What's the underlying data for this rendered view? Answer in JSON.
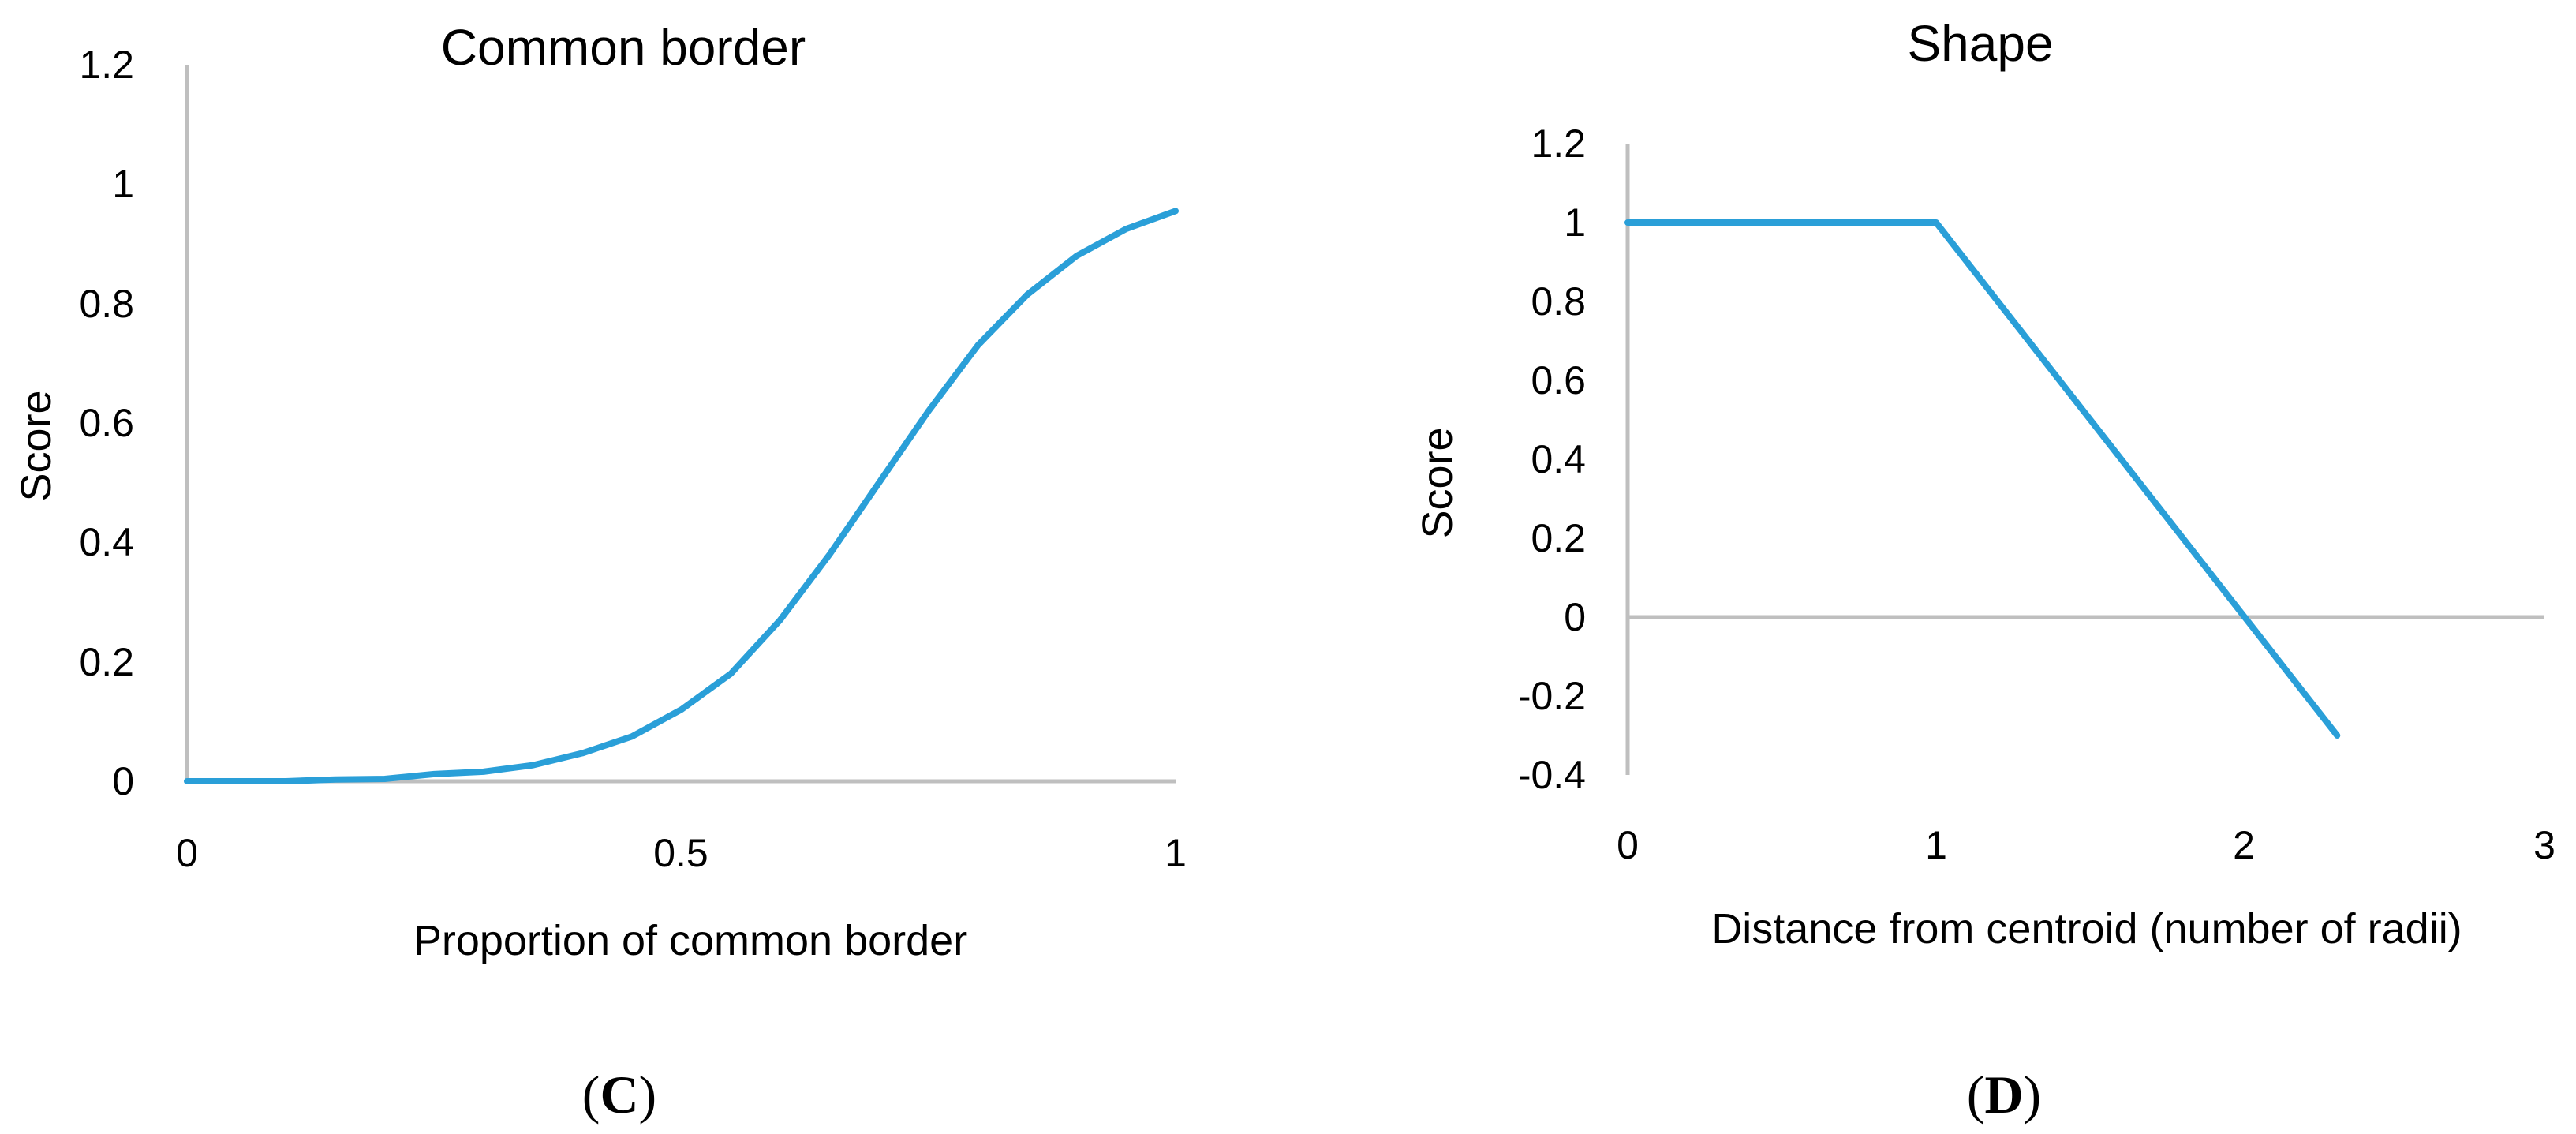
{
  "chart_data": [
    {
      "type": "line",
      "title": "Common border",
      "xlabel": "Proportion of common border",
      "ylabel": "Score",
      "xlim": [
        0,
        1
      ],
      "ylim": [
        0,
        1.2
      ],
      "x_ticks": [
        "0",
        "0.5",
        "1"
      ],
      "y_ticks": [
        "0",
        "0.2",
        "0.4",
        "0.6",
        "0.8",
        "1",
        "1.2"
      ],
      "grid": false,
      "series": [
        {
          "color": "#2a9fd8",
          "x": [
            0,
            0.05,
            0.1,
            0.15,
            0.2,
            0.25,
            0.3,
            0.35,
            0.4,
            0.45,
            0.5,
            0.55,
            0.6,
            0.65,
            0.7,
            0.75,
            0.8,
            0.85,
            0.9,
            0.95,
            1.0
          ],
          "y": [
            0,
            0,
            0,
            0.003,
            0.004,
            0.012,
            0.016,
            0.027,
            0.047,
            0.075,
            0.12,
            0.18,
            0.27,
            0.38,
            0.5,
            0.62,
            0.73,
            0.815,
            0.88,
            0.925,
            0.955
          ]
        }
      ],
      "panel_label": {
        "open": "(",
        "letter": "C",
        "close": ")"
      }
    },
    {
      "type": "line",
      "title": "Shape",
      "xlabel": "Distance from centroid (number of radii)",
      "ylabel": "Score",
      "xlim": [
        0,
        3
      ],
      "ylim": [
        -0.4,
        1.2
      ],
      "x_ticks": [
        "0",
        "1",
        "2",
        "3"
      ],
      "y_ticks": [
        "-0.4",
        "-0.2",
        "0",
        "0.2",
        "0.4",
        "0.6",
        "0.8",
        "1",
        "1.2"
      ],
      "grid": false,
      "series": [
        {
          "color": "#2a9fd8",
          "x": [
            0,
            1,
            2.3
          ],
          "y": [
            1,
            1,
            -0.3
          ]
        }
      ],
      "panel_label": {
        "open": "(",
        "letter": "D",
        "close": ")"
      }
    }
  ]
}
